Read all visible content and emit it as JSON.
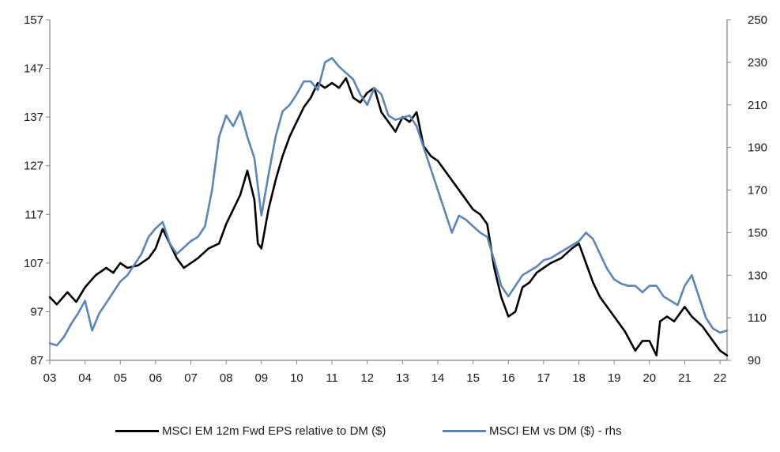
{
  "chart_data": {
    "type": "line",
    "title": "",
    "xlabel": "",
    "ylabel": "",
    "x_ticks": [
      "03",
      "04",
      "05",
      "06",
      "07",
      "08",
      "09",
      "10",
      "11",
      "12",
      "13",
      "14",
      "15",
      "16",
      "17",
      "18",
      "19",
      "20",
      "21",
      "22"
    ],
    "y_left_ticks": [
      "87",
      "97",
      "107",
      "117",
      "127",
      "137",
      "147",
      "157"
    ],
    "y_right_ticks": [
      "90",
      "110",
      "130",
      "150",
      "170",
      "190",
      "210",
      "230",
      "250"
    ],
    "ylim_left": [
      87,
      157
    ],
    "ylim_right": [
      90,
      250
    ],
    "xlim": [
      2003.0,
      2022.2
    ],
    "grid": false,
    "legend_position": "bottom",
    "series": [
      {
        "name": "MSCI EM 12m Fwd EPS relative to DM ($)",
        "axis": "left",
        "color": "#000000",
        "x": [
          2003.0,
          2003.2,
          2003.5,
          2003.75,
          2004.0,
          2004.3,
          2004.6,
          2004.8,
          2005.0,
          2005.2,
          2005.5,
          2005.8,
          2006.0,
          2006.2,
          2006.4,
          2006.6,
          2006.8,
          2007.0,
          2007.2,
          2007.5,
          2007.8,
          2008.0,
          2008.2,
          2008.4,
          2008.6,
          2008.8,
          2008.9,
          2009.0,
          2009.2,
          2009.4,
          2009.6,
          2009.8,
          2010.0,
          2010.2,
          2010.4,
          2010.6,
          2010.8,
          2011.0,
          2011.2,
          2011.4,
          2011.6,
          2011.8,
          2012.0,
          2012.2,
          2012.4,
          2012.6,
          2012.8,
          2013.0,
          2013.2,
          2013.4,
          2013.6,
          2013.8,
          2014.0,
          2014.2,
          2014.5,
          2014.8,
          2015.0,
          2015.2,
          2015.4,
          2015.6,
          2015.8,
          2016.0,
          2016.2,
          2016.4,
          2016.6,
          2016.8,
          2017.0,
          2017.2,
          2017.5,
          2017.8,
          2018.0,
          2018.2,
          2018.4,
          2018.6,
          2018.8,
          2019.0,
          2019.3,
          2019.6,
          2019.8,
          2020.0,
          2020.2,
          2020.3,
          2020.5,
          2020.7,
          2020.9,
          2021.0,
          2021.2,
          2021.5,
          2021.8,
          2022.0,
          2022.2
        ],
        "values": [
          100,
          98.5,
          101,
          99,
          102,
          104.5,
          106,
          105,
          107,
          106,
          106.5,
          108,
          110,
          114,
          111,
          108,
          106,
          107,
          108,
          110,
          111,
          115,
          118,
          121,
          126,
          120,
          111,
          110,
          118,
          124,
          129,
          133,
          136,
          139,
          141,
          144,
          143,
          144,
          143,
          145,
          141,
          140,
          142,
          143,
          138,
          136,
          134,
          137,
          136,
          138,
          131,
          129,
          128,
          126,
          123,
          120,
          118,
          117,
          115,
          106,
          100,
          96,
          97,
          102,
          103,
          105,
          106,
          107,
          108,
          110,
          111,
          107,
          103,
          100,
          98,
          96,
          93,
          89,
          91,
          91,
          88,
          95,
          96,
          95,
          97,
          98,
          96,
          94,
          91,
          89,
          88
        ]
      },
      {
        "name": "MSCI EM vs DM ($) - rhs",
        "axis": "right",
        "color": "#5a85b8",
        "x": [
          2003.0,
          2003.2,
          2003.4,
          2003.6,
          2003.8,
          2004.0,
          2004.2,
          2004.4,
          2004.6,
          2004.8,
          2005.0,
          2005.2,
          2005.4,
          2005.6,
          2005.8,
          2006.0,
          2006.2,
          2006.4,
          2006.6,
          2006.8,
          2007.0,
          2007.2,
          2007.4,
          2007.6,
          2007.8,
          2008.0,
          2008.2,
          2008.4,
          2008.6,
          2008.8,
          2009.0,
          2009.2,
          2009.4,
          2009.6,
          2009.8,
          2010.0,
          2010.2,
          2010.4,
          2010.6,
          2010.8,
          2011.0,
          2011.2,
          2011.4,
          2011.6,
          2011.8,
          2012.0,
          2012.2,
          2012.4,
          2012.6,
          2012.8,
          2013.0,
          2013.2,
          2013.4,
          2013.6,
          2013.8,
          2014.0,
          2014.2,
          2014.4,
          2014.6,
          2014.8,
          2015.0,
          2015.2,
          2015.4,
          2015.6,
          2015.8,
          2016.0,
          2016.2,
          2016.4,
          2016.6,
          2016.8,
          2017.0,
          2017.2,
          2017.4,
          2017.6,
          2017.8,
          2018.0,
          2018.2,
          2018.4,
          2018.6,
          2018.8,
          2019.0,
          2019.2,
          2019.4,
          2019.6,
          2019.8,
          2020.0,
          2020.2,
          2020.4,
          2020.6,
          2020.8,
          2021.0,
          2021.2,
          2021.4,
          2021.6,
          2021.8,
          2022.0,
          2022.2
        ],
        "values": [
          98,
          97,
          101,
          107,
          112,
          118,
          104,
          112,
          117,
          122,
          127,
          130,
          135,
          140,
          148,
          152,
          155,
          145,
          140,
          143,
          146,
          148,
          153,
          170,
          195,
          205,
          200,
          207,
          195,
          185,
          158,
          177,
          195,
          207,
          210,
          215,
          221,
          221,
          217,
          230,
          232,
          228,
          225,
          222,
          215,
          210,
          218,
          215,
          205,
          203,
          204,
          205,
          200,
          190,
          180,
          170,
          160,
          150,
          158,
          156,
          153,
          150,
          148,
          137,
          125,
          120,
          125,
          130,
          132,
          134,
          137,
          138,
          140,
          142,
          144,
          146,
          150,
          147,
          140,
          133,
          128,
          126,
          125,
          125,
          122,
          125,
          125,
          120,
          118,
          116,
          125,
          130,
          120,
          110,
          105,
          103,
          104
        ]
      }
    ]
  },
  "legend": {
    "items": [
      {
        "label": "MSCI EM 12m Fwd EPS relative to DM ($)",
        "color": "#000000"
      },
      {
        "label": "MSCI EM vs DM ($) - rhs",
        "color": "#5a85b8"
      }
    ]
  }
}
